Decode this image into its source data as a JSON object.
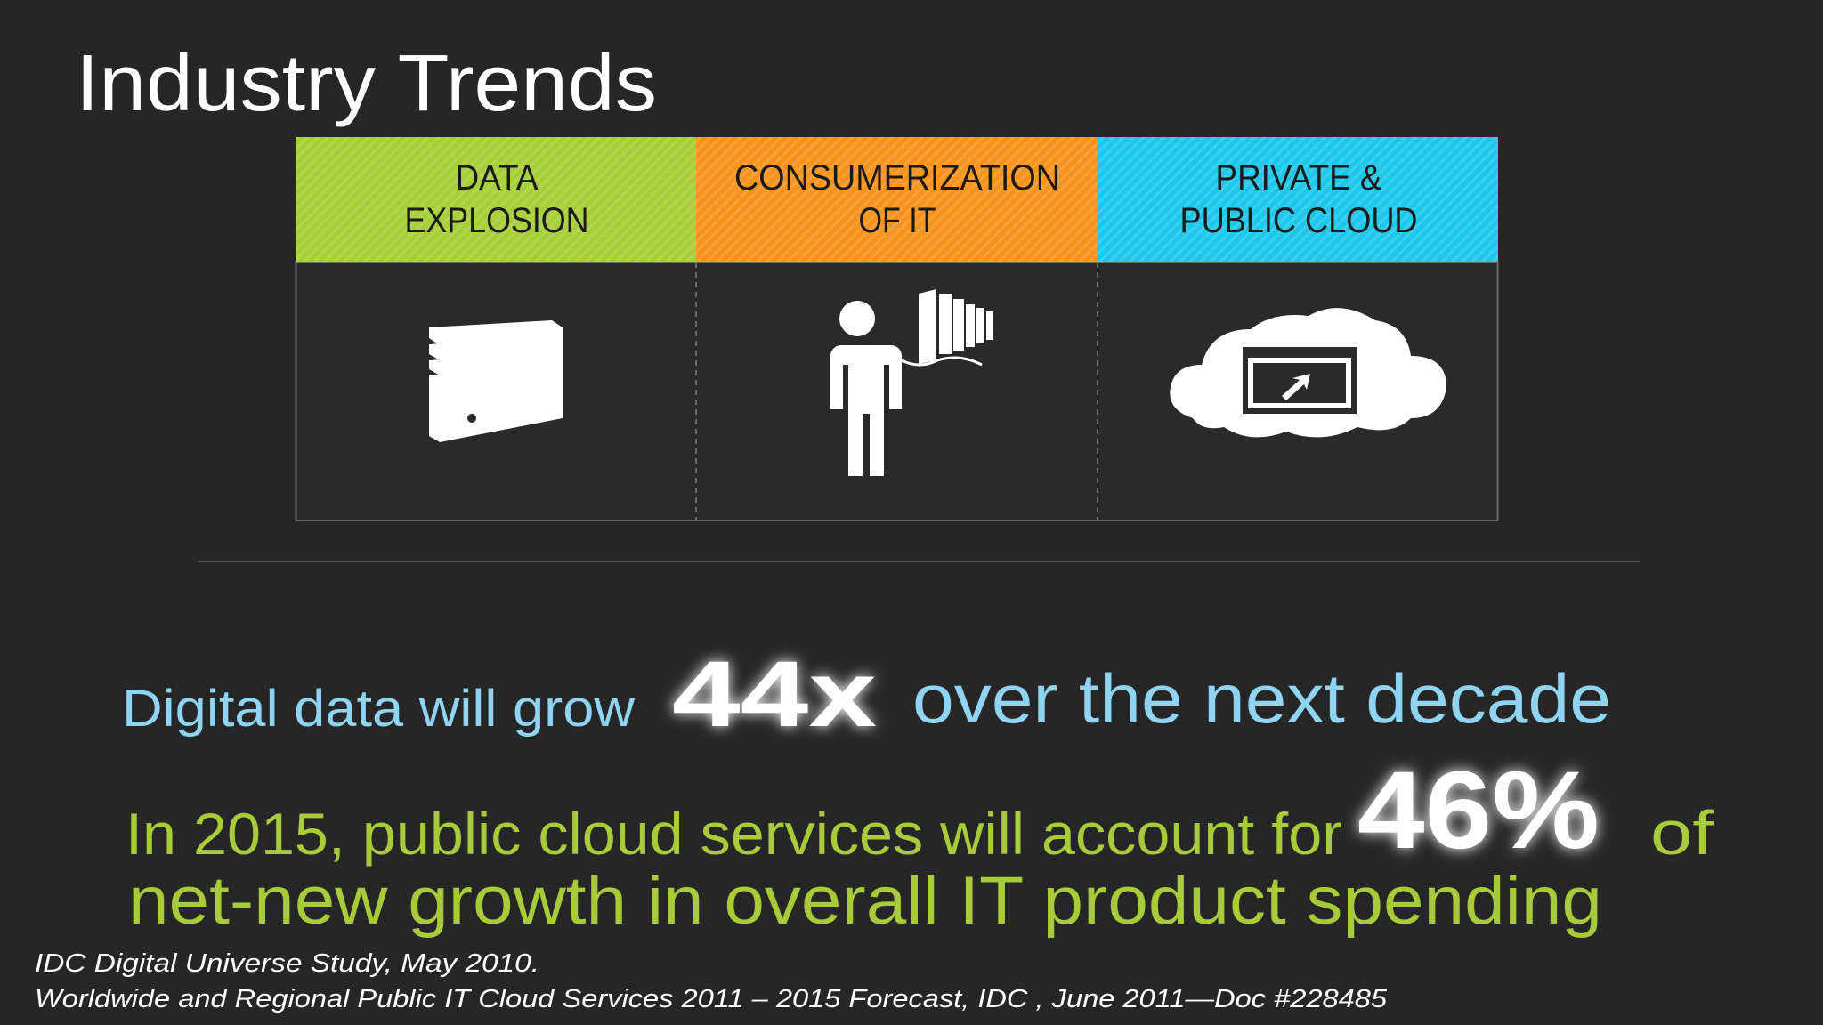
{
  "title": "Industry Trends",
  "trends": [
    {
      "label_lines": [
        "DATA",
        "EXPLOSION"
      ]
    },
    {
      "label_lines": [
        "CONSUMERIZATION",
        "OF IT"
      ]
    },
    {
      "label_lines": [
        "PRIVATE &",
        "PUBLIC CLOUD"
      ]
    }
  ],
  "statements": [
    {
      "before": "Digital data will grow",
      "highlight": "44x",
      "after": "over the next decade"
    },
    {
      "before": "In 2015, public cloud services will account for",
      "highlight": "46%",
      "after": "of",
      "continuation": "net-new growth in overall IT product spending"
    }
  ],
  "sources": [
    "IDC Digital Universe Study,  May 2010.",
    "Worldwide and Regional Public IT Cloud Services 2011 – 2015 Forecast, IDC , June 2011—Doc #228485"
  ]
}
